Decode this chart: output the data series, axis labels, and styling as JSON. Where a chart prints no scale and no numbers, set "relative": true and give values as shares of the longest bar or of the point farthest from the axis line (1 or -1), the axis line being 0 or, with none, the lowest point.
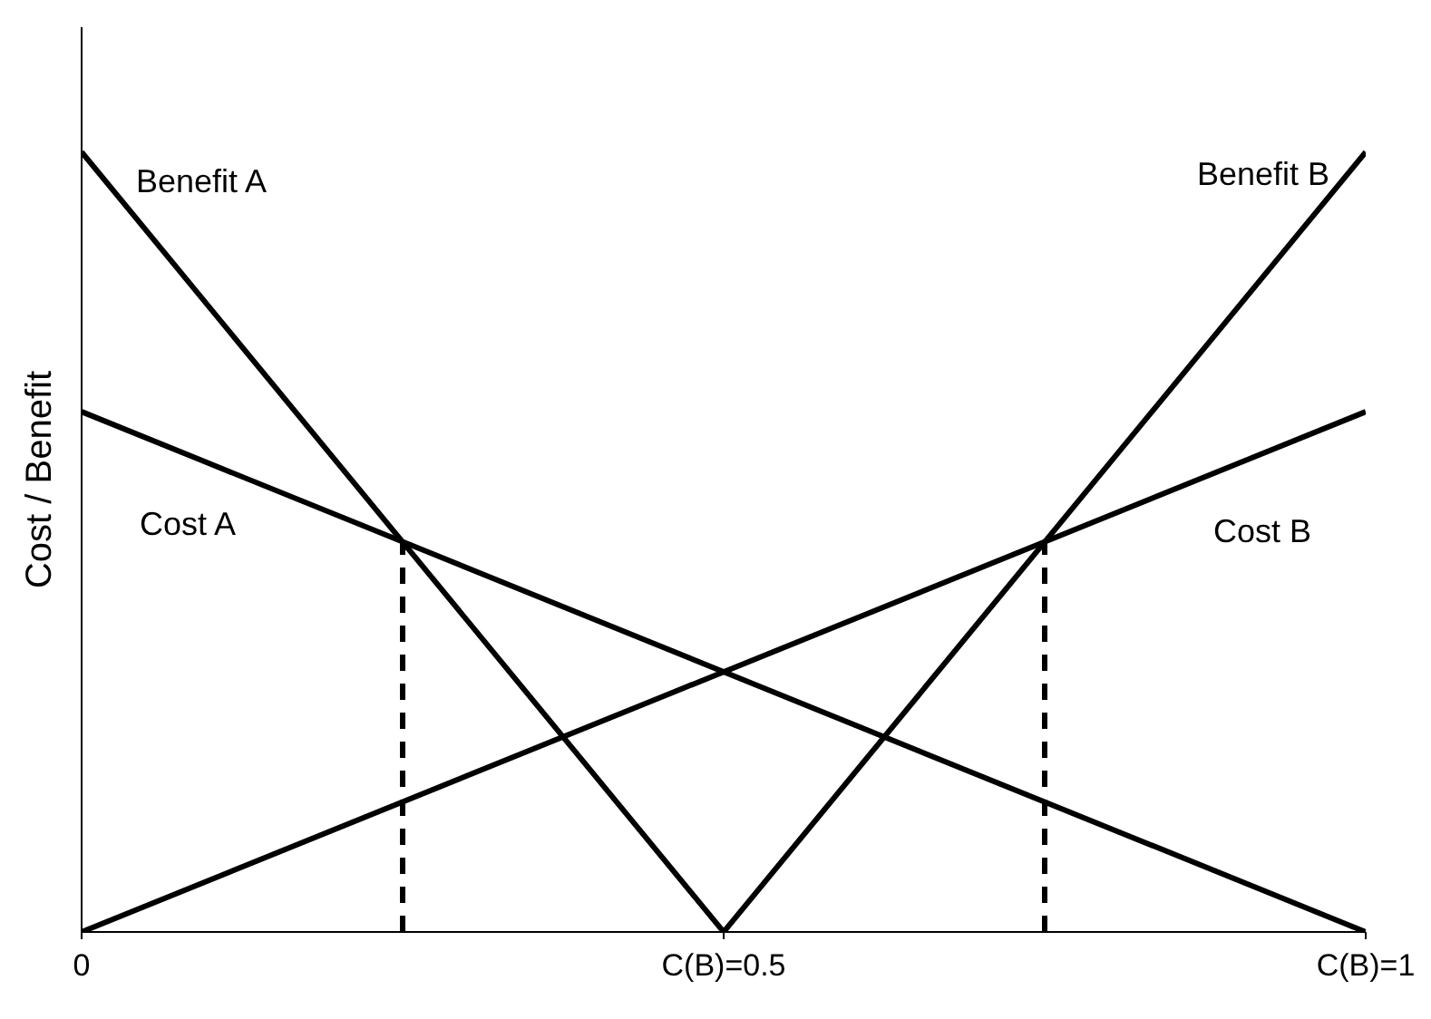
{
  "chart_data": {
    "type": "line",
    "ylabel": "Cost / Benefit",
    "relative": true,
    "xlim": [
      0,
      1
    ],
    "xticks": [
      0,
      {
        "value": 0.5,
        "label": "C(B)=0.5"
      },
      {
        "value": 1,
        "label": "C(B)=1"
      }
    ],
    "series": [
      {
        "name": "Benefit A",
        "color": "#000000",
        "x": [
          0,
          0.5
        ],
        "values": [
          1,
          0
        ]
      },
      {
        "name": "Cost A",
        "color": "#000000",
        "x": [
          0,
          1
        ],
        "values": [
          0.667,
          0
        ]
      },
      {
        "name": "Benefit B",
        "color": "#000000",
        "x": [
          0.5,
          1
        ],
        "values": [
          0,
          1
        ]
      },
      {
        "name": "Cost B",
        "color": "#000000",
        "x": [
          0,
          1
        ],
        "values": [
          0,
          0.667
        ]
      },
      {
        "color": "#000000",
        "x": [
          0.25,
          0.25
        ],
        "values": [
          0,
          0.5
        ],
        "line_style": "dashed"
      },
      {
        "color": "#000000",
        "x": [
          0.75,
          0.75
        ],
        "values": [
          0,
          0.5
        ],
        "line_style": "dashed"
      }
    ],
    "grid": false,
    "legend": false,
    "marker": "none",
    "line_style": "solid"
  }
}
